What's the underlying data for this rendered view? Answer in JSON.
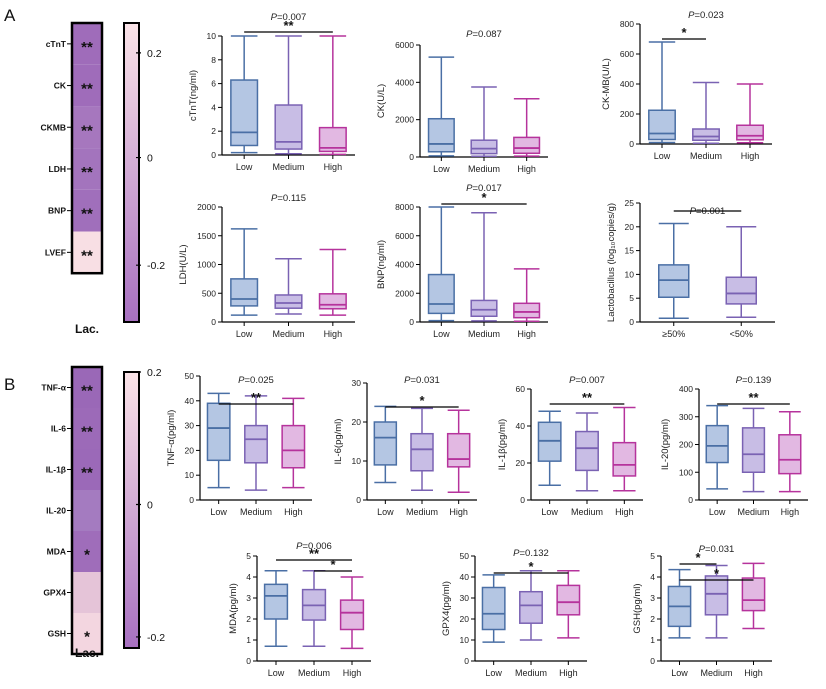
{
  "panels": [
    {
      "letter": "A"
    },
    {
      "letter": "B"
    }
  ],
  "heatmaps": [
    {
      "panel": "A",
      "column_label": "Lac.",
      "rows": [
        {
          "label": "cTnT",
          "sig": "**",
          "color": "#9f6cba"
        },
        {
          "label": "CK",
          "sig": "**",
          "color": "#9f6cba"
        },
        {
          "label": "CKMB",
          "sig": "**",
          "color": "#a677be"
        },
        {
          "label": "LDH",
          "sig": "**",
          "color": "#a374bd"
        },
        {
          "label": "BNP",
          "sig": "**",
          "color": "#a06fbb"
        },
        {
          "label": "LVEF",
          "sig": "**",
          "color": "#f8dfe4"
        }
      ],
      "colorbar": {
        "ticks": [
          "0.2",
          "0",
          "-0.2"
        ],
        "top_color": "#fbe4e8",
        "bottom_color": "#a770c0"
      }
    },
    {
      "panel": "B",
      "column_label": "Lac.",
      "rows": [
        {
          "label": "TNF-α",
          "sig": "**",
          "color": "#9a68b7"
        },
        {
          "label": "IL-6",
          "sig": "**",
          "color": "#9c6ab8"
        },
        {
          "label": "IL-1β",
          "sig": "**",
          "color": "#9b69b8"
        },
        {
          "label": "IL-20",
          "sig": "",
          "color": "#a47bc0"
        },
        {
          "label": "MDA",
          "sig": "*",
          "color": "#9f6dba"
        },
        {
          "label": "GPX4",
          "sig": "",
          "color": "#e5c4d8"
        },
        {
          "label": "GSH",
          "sig": "*",
          "color": "#f3d6e0"
        }
      ],
      "colorbar": {
        "ticks": [
          "0.2",
          "0",
          "-0.2"
        ],
        "top_color": "#fbe4e8",
        "bottom_color": "#a770c0"
      }
    }
  ],
  "chart_data": [
    {
      "type": "box",
      "panel": "A",
      "ylabel": "cTnT(ng/ml)",
      "ylim": [
        0,
        10
      ],
      "yticks": [
        "0",
        "2",
        "4",
        "6",
        "8",
        "10"
      ],
      "categories": [
        "Low",
        "Medium",
        "High"
      ],
      "p_label": "P=0.007",
      "sig_bars": [
        {
          "from": 0,
          "to": 2,
          "label": "**"
        }
      ],
      "boxes": [
        {
          "min": 0.2,
          "q1": 0.8,
          "median": 1.9,
          "q3": 6.3,
          "max": 10
        },
        {
          "min": 0.1,
          "q1": 0.5,
          "median": 1.1,
          "q3": 4.2,
          "max": 10
        },
        {
          "min": 0.05,
          "q1": 0.3,
          "median": 0.6,
          "q3": 2.3,
          "max": 10
        }
      ],
      "colors": [
        "#4a6fa5",
        "#7a62b3",
        "#b6339c"
      ],
      "fills": [
        "#b4c6e3",
        "#c8bde5",
        "#e2b8e2"
      ]
    },
    {
      "type": "box",
      "panel": "A",
      "ylabel": "CK(U/L)",
      "ylim": [
        0,
        6000
      ],
      "yticks": [
        "0",
        "2000",
        "4000",
        "6000"
      ],
      "categories": [
        "Low",
        "Medium",
        "High"
      ],
      "p_label": "P=0.087",
      "sig_bars": [],
      "boxes": [
        {
          "min": 60,
          "q1": 280,
          "median": 700,
          "q3": 2050,
          "max": 5350
        },
        {
          "min": 40,
          "q1": 180,
          "median": 450,
          "q3": 900,
          "max": 3750
        },
        {
          "min": 50,
          "q1": 200,
          "median": 480,
          "q3": 1050,
          "max": 3120
        }
      ],
      "colors": [
        "#4a6fa5",
        "#7a62b3",
        "#b6339c"
      ],
      "fills": [
        "#b4c6e3",
        "#c8bde5",
        "#e2b8e2"
      ]
    },
    {
      "type": "box",
      "panel": "A",
      "ylabel": "CK-MB(U/L)",
      "ylim": [
        0,
        800
      ],
      "yticks": [
        "0",
        "200",
        "400",
        "600",
        "800"
      ],
      "categories": [
        "Low",
        "Medium",
        "High"
      ],
      "p_label": "P=0.023",
      "sig_bars": [
        {
          "from": 0,
          "to": 1,
          "label": "*"
        }
      ],
      "boxes": [
        {
          "min": 10,
          "q1": 30,
          "median": 70,
          "q3": 225,
          "max": 680
        },
        {
          "min": 5,
          "q1": 25,
          "median": 50,
          "q3": 100,
          "max": 410
        },
        {
          "min": 8,
          "q1": 28,
          "median": 55,
          "q3": 125,
          "max": 400
        }
      ],
      "colors": [
        "#4a6fa5",
        "#7a62b3",
        "#b6339c"
      ],
      "fills": [
        "#b4c6e3",
        "#c8bde5",
        "#e2b8e2"
      ]
    },
    {
      "type": "box",
      "panel": "A",
      "ylabel": "LDH(U/L)",
      "ylim": [
        0,
        2000
      ],
      "yticks": [
        "0",
        "500",
        "1000",
        "1500",
        "2000"
      ],
      "categories": [
        "Low",
        "Medium",
        "High"
      ],
      "p_label": "P=0.115",
      "sig_bars": [],
      "boxes": [
        {
          "min": 120,
          "q1": 280,
          "median": 400,
          "q3": 750,
          "max": 1620
        },
        {
          "min": 140,
          "q1": 240,
          "median": 330,
          "q3": 470,
          "max": 1100
        },
        {
          "min": 120,
          "q1": 230,
          "median": 300,
          "q3": 490,
          "max": 1260
        }
      ],
      "colors": [
        "#4a6fa5",
        "#7a62b3",
        "#b6339c"
      ],
      "fills": [
        "#b4c6e3",
        "#c8bde5",
        "#e2b8e2"
      ]
    },
    {
      "type": "box",
      "panel": "A",
      "ylabel": "BNP(ng/ml)",
      "ylim": [
        0,
        8000
      ],
      "yticks": [
        "0",
        "2000",
        "4000",
        "6000",
        "8000"
      ],
      "categories": [
        "Low",
        "Medium",
        "High"
      ],
      "p_label": "P=0.017",
      "sig_bars": [
        {
          "from": 0,
          "to": 2,
          "label": "*"
        }
      ],
      "boxes": [
        {
          "min": 100,
          "q1": 600,
          "median": 1250,
          "q3": 3300,
          "max": 8000
        },
        {
          "min": 80,
          "q1": 400,
          "median": 850,
          "q3": 1500,
          "max": 7600
        },
        {
          "min": 50,
          "q1": 300,
          "median": 700,
          "q3": 1300,
          "max": 3700
        }
      ],
      "colors": [
        "#4a6fa5",
        "#7a62b3",
        "#b6339c"
      ],
      "fills": [
        "#b4c6e3",
        "#c8bde5",
        "#e2b8e2"
      ]
    },
    {
      "type": "box",
      "panel": "A",
      "ylabel": "Lactobacillus (log₁₀copies/g)",
      "ylim": [
        0,
        25
      ],
      "yticks": [
        "0",
        "5",
        "10",
        "15",
        "20",
        "25"
      ],
      "categories": [
        "≥50%",
        "<50%"
      ],
      "p_label": "P=0.001",
      "sig_bars": [
        {
          "from": 0,
          "to": 1,
          "label": ""
        }
      ],
      "boxes": [
        {
          "min": 0.8,
          "q1": 5.2,
          "median": 8.8,
          "q3": 12,
          "max": 20.7
        },
        {
          "min": 1,
          "q1": 3.8,
          "median": 6,
          "q3": 9.4,
          "max": 20
        }
      ],
      "colors": [
        "#4a6fa5",
        "#7a62b3"
      ],
      "fills": [
        "#b4c6e3",
        "#c8bde5"
      ]
    },
    {
      "type": "box",
      "panel": "B",
      "ylabel": "TNF-α(pg/ml)",
      "ylim": [
        0,
        50
      ],
      "yticks": [
        "0",
        "10",
        "20",
        "30",
        "40",
        "50"
      ],
      "categories": [
        "Low",
        "Medium",
        "High"
      ],
      "p_label": "P=0.025",
      "sig_bars": [
        {
          "from": 0,
          "to": 2,
          "label": "**"
        }
      ],
      "boxes": [
        {
          "min": 5,
          "q1": 16,
          "median": 29,
          "q3": 39,
          "max": 43
        },
        {
          "min": 4,
          "q1": 15,
          "median": 24.5,
          "q3": 30,
          "max": 42
        },
        {
          "min": 5,
          "q1": 13,
          "median": 20,
          "q3": 30,
          "max": 41
        }
      ],
      "colors": [
        "#4a6fa5",
        "#7a62b3",
        "#b6339c"
      ],
      "fills": [
        "#b4c6e3",
        "#c8bde5",
        "#e2b8e2"
      ]
    },
    {
      "type": "box",
      "panel": "B",
      "ylabel": "IL-6(pg/ml)",
      "ylim": [
        0,
        30
      ],
      "yticks": [
        "0",
        "10",
        "20",
        "30"
      ],
      "categories": [
        "Low",
        "Medium",
        "High"
      ],
      "p_label": "P=0.031",
      "sig_bars": [
        {
          "from": 0,
          "to": 2,
          "label": "*"
        }
      ],
      "boxes": [
        {
          "min": 4.5,
          "q1": 9,
          "median": 16,
          "q3": 20,
          "max": 24
        },
        {
          "min": 2.5,
          "q1": 7.5,
          "median": 13,
          "q3": 17,
          "max": 23.5
        },
        {
          "min": 2,
          "q1": 8.5,
          "median": 10.5,
          "q3": 17,
          "max": 23
        }
      ],
      "colors": [
        "#4a6fa5",
        "#7a62b3",
        "#b6339c"
      ],
      "fills": [
        "#b4c6e3",
        "#c8bde5",
        "#e2b8e2"
      ]
    },
    {
      "type": "box",
      "panel": "B",
      "ylabel": "IL-1β(pg/ml)",
      "ylim": [
        0,
        60
      ],
      "yticks": [
        "0",
        "20",
        "40",
        "60"
      ],
      "categories": [
        "Low",
        "Medium",
        "High"
      ],
      "p_label": "P=0.007",
      "sig_bars": [
        {
          "from": 0,
          "to": 2,
          "label": "**"
        }
      ],
      "boxes": [
        {
          "min": 8,
          "q1": 21,
          "median": 32,
          "q3": 42,
          "max": 48
        },
        {
          "min": 5,
          "q1": 16,
          "median": 28,
          "q3": 37,
          "max": 47
        },
        {
          "min": 5,
          "q1": 13,
          "median": 19,
          "q3": 31,
          "max": 50
        }
      ],
      "colors": [
        "#4a6fa5",
        "#7a62b3",
        "#b6339c"
      ],
      "fills": [
        "#b4c6e3",
        "#c8bde5",
        "#e2b8e2"
      ]
    },
    {
      "type": "box",
      "panel": "B",
      "ylabel": "IL-20(pg/ml)",
      "ylim": [
        0,
        400
      ],
      "yticks": [
        "0",
        "100",
        "200",
        "300",
        "400"
      ],
      "categories": [
        "Low",
        "Medium",
        "High"
      ],
      "p_label": "P=0.139",
      "sig_bars": [
        {
          "from": 0,
          "to": 2,
          "label": "**"
        }
      ],
      "boxes": [
        {
          "min": 40,
          "q1": 135,
          "median": 195,
          "q3": 268,
          "max": 340
        },
        {
          "min": 30,
          "q1": 100,
          "median": 165,
          "q3": 260,
          "max": 330
        },
        {
          "min": 30,
          "q1": 95,
          "median": 145,
          "q3": 235,
          "max": 318
        }
      ],
      "colors": [
        "#4a6fa5",
        "#7a62b3",
        "#b6339c"
      ],
      "fills": [
        "#b4c6e3",
        "#c8bde5",
        "#e2b8e2"
      ]
    },
    {
      "type": "box",
      "panel": "B",
      "ylabel": "MDA(pg/ml)",
      "ylim": [
        0,
        5
      ],
      "yticks": [
        "0",
        "1",
        "2",
        "3",
        "4",
        "5"
      ],
      "categories": [
        "Low",
        "Medium",
        "High"
      ],
      "p_label": "P=0.006",
      "sig_bars": [
        {
          "from": 0,
          "to": 2,
          "label": "**"
        },
        {
          "from": 1,
          "to": 2,
          "label": "*"
        }
      ],
      "boxes": [
        {
          "min": 0.7,
          "q1": 2,
          "median": 3.1,
          "q3": 3.65,
          "max": 4.3
        },
        {
          "min": 0.7,
          "q1": 1.95,
          "median": 2.65,
          "q3": 3.4,
          "max": 4.3
        },
        {
          "min": 0.6,
          "q1": 1.5,
          "median": 2.3,
          "q3": 2.9,
          "max": 4
        }
      ],
      "colors": [
        "#4a6fa5",
        "#7a62b3",
        "#b6339c"
      ],
      "fills": [
        "#b4c6e3",
        "#c8bde5",
        "#e2b8e2"
      ]
    },
    {
      "type": "box",
      "panel": "B",
      "ylabel": "GPX4(pg/ml)",
      "ylim": [
        0,
        50
      ],
      "yticks": [
        "0",
        "10",
        "20",
        "30",
        "40",
        "50"
      ],
      "categories": [
        "Low",
        "Medium",
        "High"
      ],
      "p_label": "P=0.132",
      "sig_bars": [
        {
          "from": 0,
          "to": 2,
          "label": "*"
        }
      ],
      "boxes": [
        {
          "min": 9,
          "q1": 15,
          "median": 22.5,
          "q3": 35,
          "max": 41
        },
        {
          "min": 10,
          "q1": 18,
          "median": 26.5,
          "q3": 33,
          "max": 43
        },
        {
          "min": 11,
          "q1": 22,
          "median": 28,
          "q3": 36,
          "max": 43
        }
      ],
      "colors": [
        "#4a6fa5",
        "#7a62b3",
        "#b6339c"
      ],
      "fills": [
        "#b4c6e3",
        "#c8bde5",
        "#e2b8e2"
      ]
    },
    {
      "type": "box",
      "panel": "B",
      "ylabel": "GSH(pg/ml)",
      "ylim": [
        0,
        5
      ],
      "yticks": [
        "0",
        "1",
        "2",
        "3",
        "4",
        "5"
      ],
      "categories": [
        "Low",
        "Medium",
        "High"
      ],
      "p_label": "P=0.031",
      "sig_bars": [
        {
          "from": 0,
          "to": 1,
          "label": "*"
        },
        {
          "from": 0,
          "to": 2,
          "label": "*"
        }
      ],
      "boxes": [
        {
          "min": 1.1,
          "q1": 1.65,
          "median": 2.6,
          "q3": 3.55,
          "max": 4.35
        },
        {
          "min": 1.1,
          "q1": 2.2,
          "median": 3.2,
          "q3": 4.05,
          "max": 4.55
        },
        {
          "min": 1.55,
          "q1": 2.4,
          "median": 2.9,
          "q3": 3.95,
          "max": 4.65
        }
      ],
      "colors": [
        "#4a6fa5",
        "#7a62b3",
        "#b6339c"
      ],
      "fills": [
        "#b4c6e3",
        "#c8bde5",
        "#e2b8e2"
      ]
    }
  ]
}
